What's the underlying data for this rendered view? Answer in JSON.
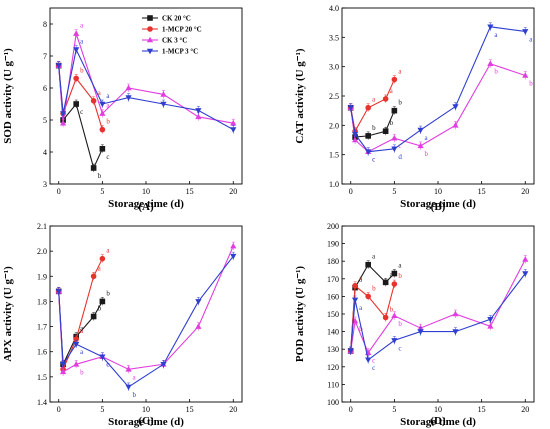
{
  "colors": {
    "ck20": "#1a1a1a",
    "mcp20": "#e8322e",
    "ck3": "#e23de0",
    "mcp3": "#2f3fcf"
  },
  "legend": [
    "CK 20 °C",
    "1-MCP 20 °C",
    "CK 3 °C",
    "1-MCP 3 °C"
  ],
  "chart_data": [
    {
      "type": "line",
      "panel_label": "(A)",
      "xlabel": "Storage time (d)",
      "ylabel": "SOD activity (U g⁻¹)",
      "xlim": [
        -1,
        21
      ],
      "ylim": [
        3,
        8.5
      ],
      "xticks": [
        0,
        5,
        10,
        15,
        20
      ],
      "yticks": [
        3,
        4,
        5,
        6,
        7,
        8
      ],
      "legend_position": "top-right",
      "series": [
        {
          "name": "CK 20 °C",
          "color": "ck20",
          "marker": "square",
          "x": [
            0,
            0.5,
            2,
            4,
            5
          ],
          "y": [
            6.7,
            5.0,
            5.5,
            3.5,
            4.1
          ],
          "labels": [
            "",
            "",
            "c",
            "b",
            "c"
          ]
        },
        {
          "name": "1-MCP 20 °C",
          "color": "mcp20",
          "marker": "circle",
          "x": [
            0,
            0.5,
            2,
            4,
            5
          ],
          "y": [
            6.7,
            5.2,
            6.3,
            5.6,
            4.7
          ],
          "labels": [
            "",
            "",
            "b",
            "a",
            "b"
          ]
        },
        {
          "name": "CK 3 °C",
          "color": "ck3",
          "marker": "triangle",
          "x": [
            0,
            0.5,
            2,
            5,
            8,
            12,
            16,
            20
          ],
          "y": [
            6.7,
            4.9,
            7.7,
            5.2,
            6.0,
            5.8,
            5.1,
            4.9
          ],
          "labels": [
            "",
            "",
            "a",
            "a",
            "",
            "",
            "",
            ""
          ]
        },
        {
          "name": "1-MCP 3 °C",
          "color": "mcp3",
          "marker": "triangle-down",
          "x": [
            0,
            0.5,
            2,
            5,
            8,
            12,
            16,
            20
          ],
          "y": [
            6.7,
            5.2,
            7.2,
            5.5,
            5.7,
            5.5,
            5.3,
            4.7
          ],
          "labels": [
            "",
            "",
            "a",
            "a",
            "",
            "",
            "",
            ""
          ]
        }
      ]
    },
    {
      "type": "line",
      "panel_label": "(B)",
      "xlabel": "Storage time (d)",
      "ylabel": "CAT activity (U g⁻¹)",
      "xlim": [
        -1,
        21
      ],
      "ylim": [
        1.0,
        4.0
      ],
      "xticks": [
        0,
        5,
        10,
        15,
        20
      ],
      "yticks": [
        1.0,
        1.5,
        2.0,
        2.5,
        3.0,
        3.5,
        4.0
      ],
      "series": [
        {
          "name": "CK 20 °C",
          "color": "ck20",
          "marker": "square",
          "x": [
            0,
            0.5,
            2,
            4,
            5
          ],
          "y": [
            2.3,
            1.8,
            1.82,
            1.9,
            2.25
          ],
          "labels": [
            "",
            "",
            "b",
            "b",
            "b"
          ]
        },
        {
          "name": "1-MCP 20 °C",
          "color": "mcp20",
          "marker": "circle",
          "x": [
            0,
            0.5,
            2,
            4,
            5
          ],
          "y": [
            2.3,
            1.9,
            2.3,
            2.45,
            2.78
          ],
          "labels": [
            "",
            "",
            "a",
            "a",
            "a"
          ]
        },
        {
          "name": "CK 3 °C",
          "color": "ck3",
          "marker": "triangle",
          "x": [
            0,
            0.5,
            2,
            5,
            8,
            12,
            16,
            20
          ],
          "y": [
            2.3,
            1.75,
            1.55,
            1.78,
            1.65,
            2.0,
            3.05,
            2.85
          ],
          "labels": [
            "",
            "",
            "c",
            "c",
            "b",
            "",
            "b",
            "b"
          ]
        },
        {
          "name": "1-MCP 3 °C",
          "color": "mcp3",
          "marker": "triangle-down",
          "x": [
            0,
            0.5,
            2,
            5,
            8,
            12,
            16,
            20
          ],
          "y": [
            2.3,
            1.85,
            1.55,
            1.6,
            1.92,
            2.32,
            3.68,
            3.6
          ],
          "labels": [
            "",
            "",
            "c",
            "d",
            "a",
            "",
            "a",
            "a"
          ]
        }
      ]
    },
    {
      "type": "line",
      "panel_label": "(C)",
      "xlabel": "Storage time (d)",
      "ylabel": "APX activity (U g⁻¹)",
      "xlim": [
        -1,
        21
      ],
      "ylim": [
        1.4,
        2.1
      ],
      "xticks": [
        0,
        5,
        10,
        15,
        20
      ],
      "yticks": [
        1.4,
        1.5,
        1.6,
        1.7,
        1.8,
        1.9,
        2.0,
        2.1
      ],
      "series": [
        {
          "name": "CK 20 °C",
          "color": "ck20",
          "marker": "square",
          "x": [
            0,
            0.5,
            2,
            4,
            5
          ],
          "y": [
            1.84,
            1.55,
            1.66,
            1.74,
            1.8
          ],
          "labels": [
            "",
            "",
            "a",
            "b",
            "b"
          ]
        },
        {
          "name": "1-MCP 20 °C",
          "color": "mcp20",
          "marker": "circle",
          "x": [
            0,
            0.5,
            2,
            4,
            5
          ],
          "y": [
            1.84,
            1.53,
            1.65,
            1.9,
            1.97
          ],
          "labels": [
            "",
            "",
            "a",
            "a",
            "a"
          ]
        },
        {
          "name": "CK 3 °C",
          "color": "ck3",
          "marker": "triangle",
          "x": [
            0,
            0.5,
            2,
            5,
            8,
            12,
            16,
            20
          ],
          "y": [
            1.84,
            1.52,
            1.55,
            1.58,
            1.53,
            1.55,
            1.7,
            2.02
          ],
          "labels": [
            "",
            "",
            "b",
            "c",
            "a",
            "",
            "",
            ""
          ]
        },
        {
          "name": "1-MCP 3 °C",
          "color": "mcp3",
          "marker": "triangle-down",
          "x": [
            0,
            0.5,
            2,
            5,
            8,
            12,
            16,
            20
          ],
          "y": [
            1.84,
            1.55,
            1.63,
            1.58,
            1.46,
            1.55,
            1.8,
            1.98
          ],
          "labels": [
            "",
            "",
            "a",
            "c",
            "b",
            "",
            "",
            ""
          ]
        }
      ]
    },
    {
      "type": "line",
      "panel_label": "(D)",
      "xlabel": "Storage time (d)",
      "ylabel": "POD activity (U g⁻¹)",
      "xlim": [
        -1,
        21
      ],
      "ylim": [
        100,
        200
      ],
      "xticks": [
        0,
        5,
        10,
        15,
        20
      ],
      "yticks": [
        100,
        110,
        120,
        130,
        140,
        150,
        160,
        170,
        180,
        190,
        200
      ],
      "series": [
        {
          "name": "CK 20 °C",
          "color": "ck20",
          "marker": "square",
          "x": [
            0,
            0.5,
            2,
            4,
            5
          ],
          "y": [
            129,
            165,
            178,
            168,
            173
          ],
          "labels": [
            "",
            "a",
            "a",
            "a",
            "a"
          ]
        },
        {
          "name": "1-MCP 20 °C",
          "color": "mcp20",
          "marker": "circle",
          "x": [
            0,
            0.5,
            2,
            4,
            5
          ],
          "y": [
            129,
            166,
            160,
            148,
            167
          ],
          "labels": [
            "",
            "a",
            "b",
            "b",
            "b"
          ]
        },
        {
          "name": "CK 3 °C",
          "color": "ck3",
          "marker": "triangle",
          "x": [
            0,
            0.5,
            2,
            5,
            8,
            12,
            16,
            20
          ],
          "y": [
            129,
            146,
            128,
            149,
            142,
            150,
            143,
            181
          ],
          "labels": [
            "",
            "b",
            "c",
            "b",
            "",
            "",
            "",
            ""
          ]
        },
        {
          "name": "1-MCP 3 °C",
          "color": "mcp3",
          "marker": "triangle-down",
          "x": [
            0,
            0.5,
            2,
            5,
            8,
            12,
            16,
            20
          ],
          "y": [
            129,
            158,
            124,
            135,
            140,
            140,
            147,
            173
          ],
          "labels": [
            "",
            "a",
            "c",
            "c",
            "",
            "",
            "",
            ""
          ]
        }
      ]
    }
  ]
}
